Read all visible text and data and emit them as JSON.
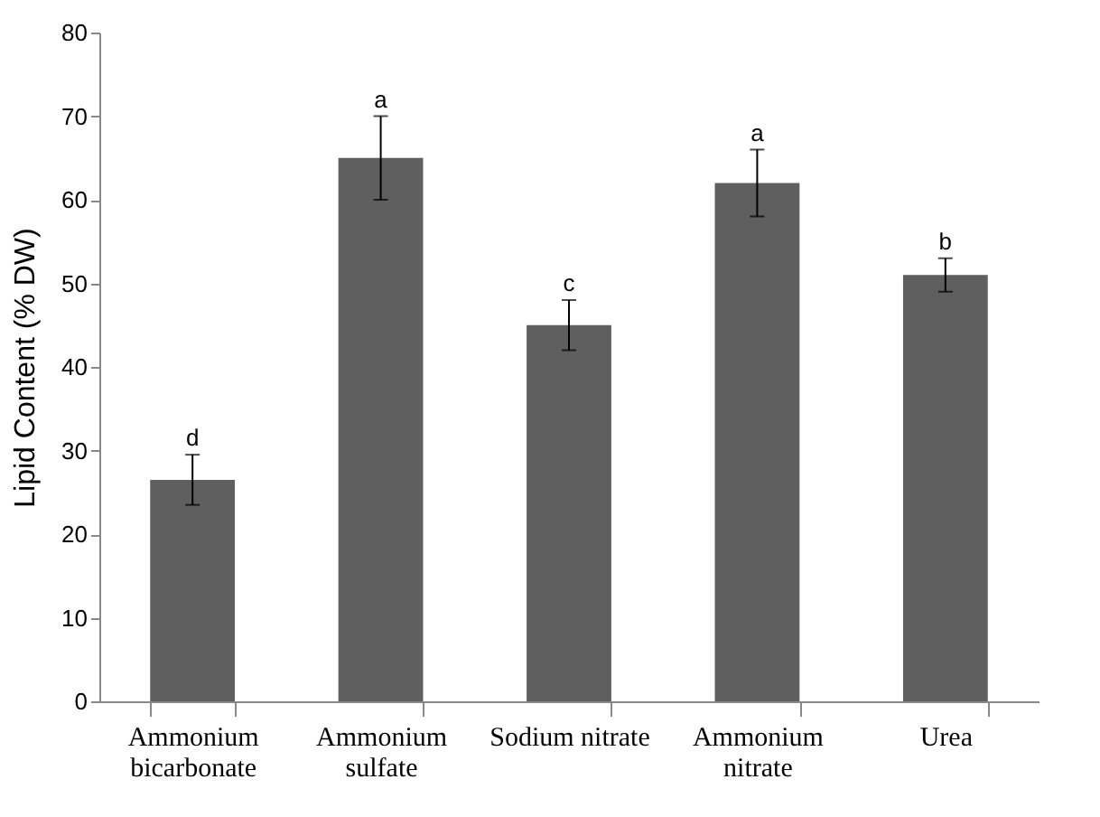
{
  "chart_data": {
    "type": "bar",
    "ylabel": "Lipid Content (% DW)",
    "categories": [
      "Ammonium bicarbonate",
      "Ammonium sulfate",
      "Sodium nitrate",
      "Ammonium nitrate",
      "Urea"
    ],
    "values": [
      26.5,
      65,
      45,
      62,
      51
    ],
    "errors": [
      3,
      5,
      3,
      4,
      2
    ],
    "color": "#5f5f5f",
    "ylim": [
      0,
      80
    ],
    "yticks": [
      0,
      10,
      20,
      30,
      40,
      50,
      60,
      70,
      80
    ],
    "grid": false,
    "annotations": [
      {
        "text": "d",
        "x": "Ammonium bicarbonate",
        "y": 29.5
      },
      {
        "text": "a",
        "x": "Ammonium sulfate",
        "y": 70
      },
      {
        "text": "c",
        "x": "Sodium nitrate",
        "y": 48
      },
      {
        "text": "a",
        "x": "Ammonium nitrate",
        "y": 66
      },
      {
        "text": "b",
        "x": "Urea",
        "y": 53
      }
    ]
  }
}
